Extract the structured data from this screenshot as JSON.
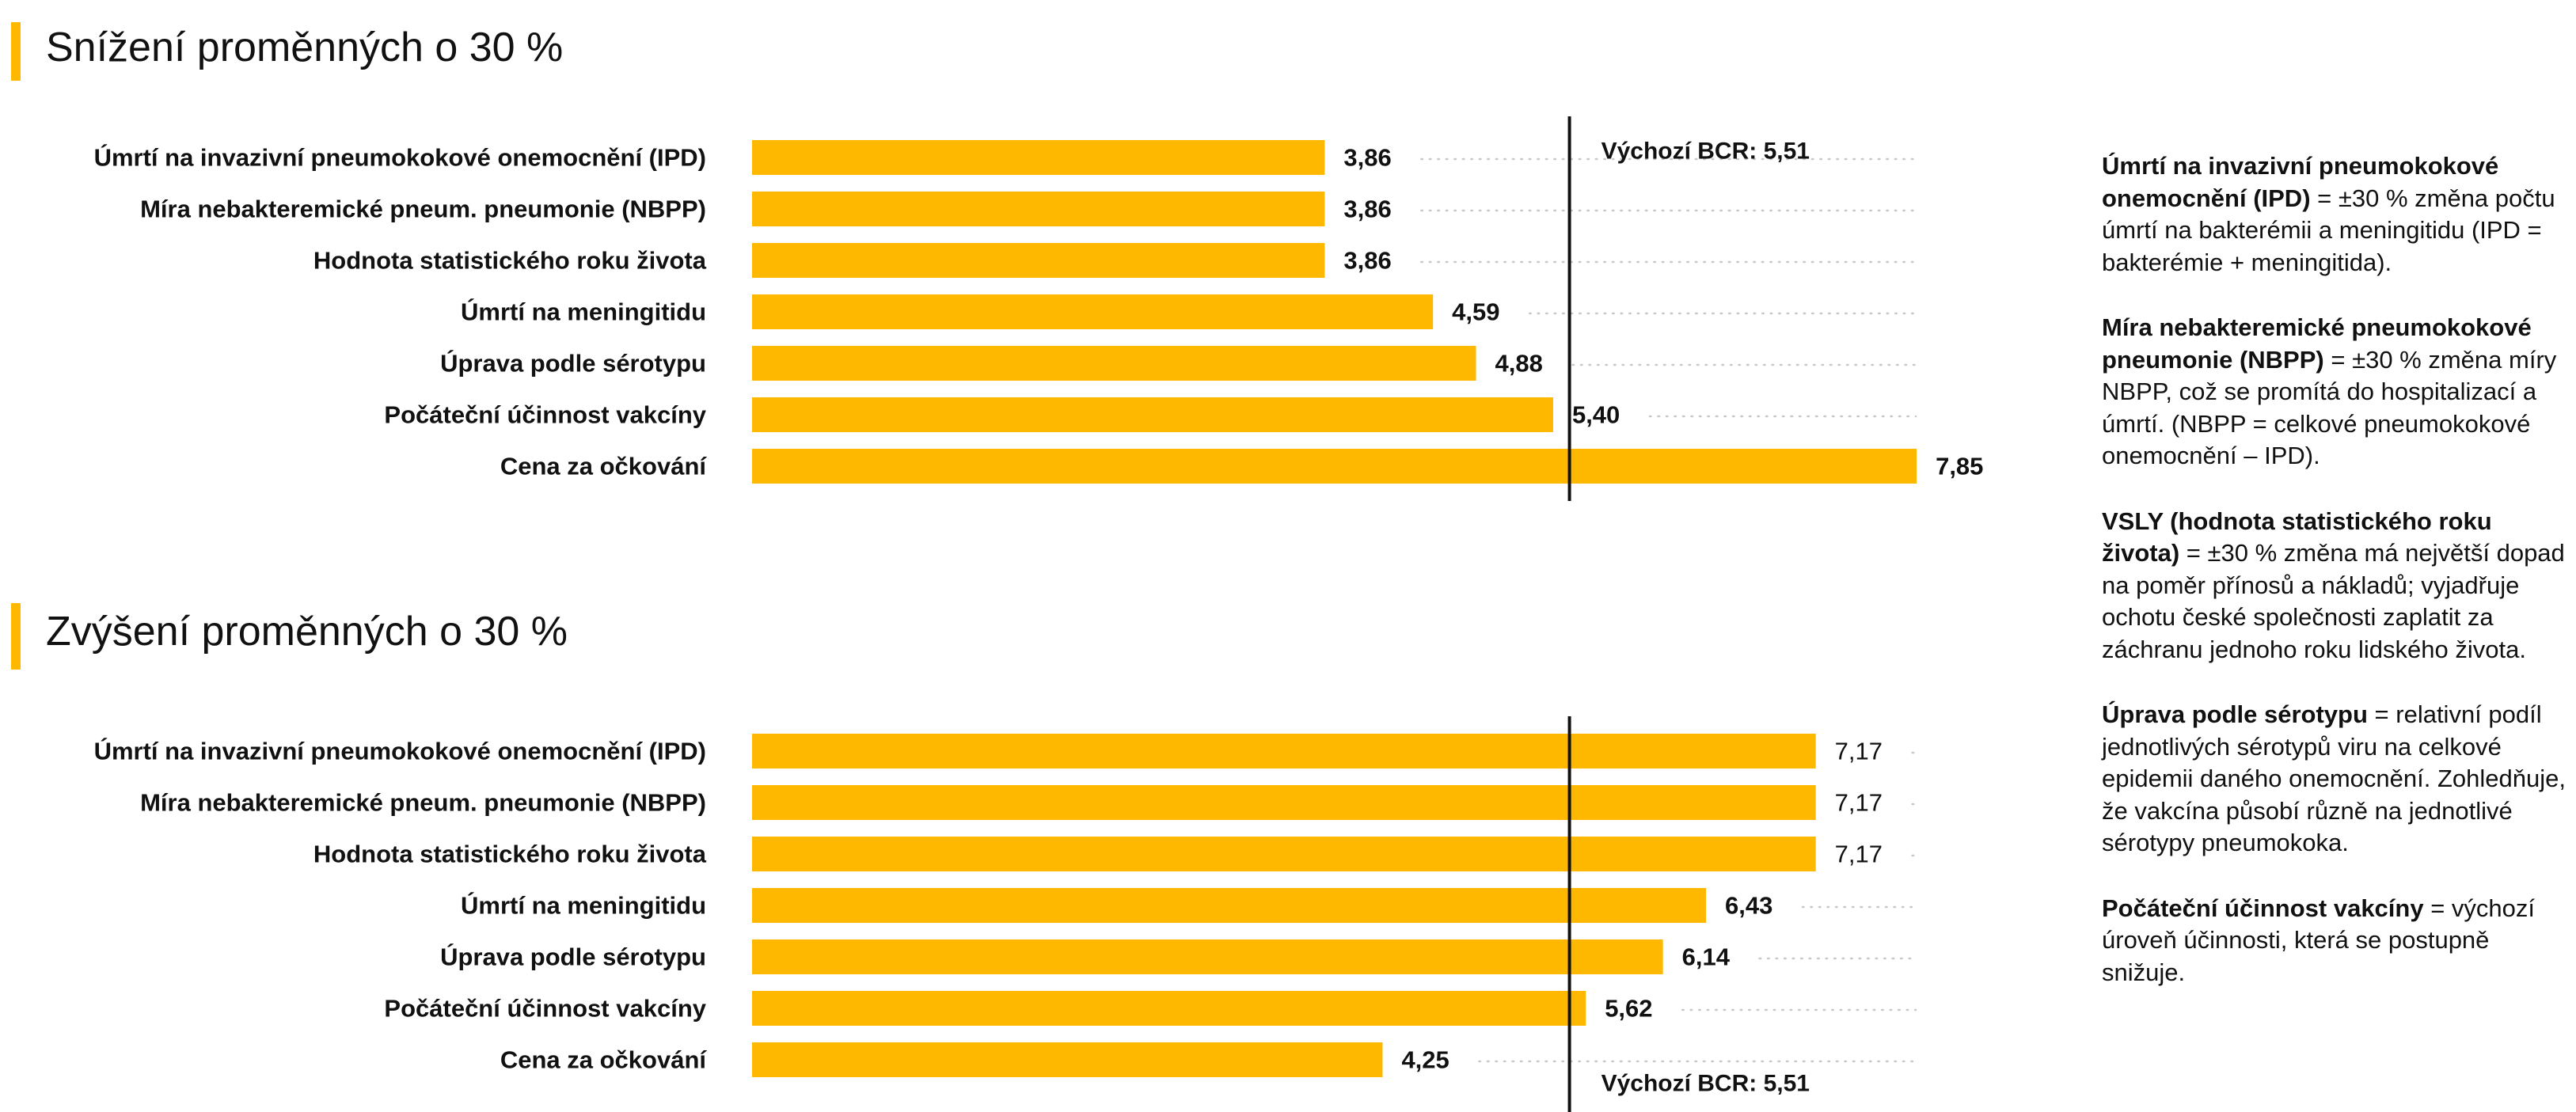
{
  "colors": {
    "accent": "#FFB800",
    "text": "#111111",
    "guide": "#c8c8c8"
  },
  "chart_data": [
    {
      "type": "bar",
      "orientation": "horizontal",
      "title": "Snížení proměnných o 30 %",
      "categories": [
        "Úmrtí na invazivní pneumokokové onemocnění (IPD)",
        "Míra nebakteremické pneum. pneumonie (NBPP)",
        "Hodnota statistického roku života",
        "Úmrtí na meningitidu",
        "Úprava podle sérotypu",
        "Počáteční účinnost vakcíny",
        "Cena za očkování"
      ],
      "values": [
        3.86,
        3.86,
        3.86,
        4.59,
        4.88,
        5.4,
        7.85
      ],
      "value_labels": [
        "3,86",
        "3,86",
        "3,86",
        "4,59",
        "4,88",
        "5,40",
        "7,85"
      ],
      "baseline": {
        "value": 5.51,
        "label": "Výchozí BCR: 5,51",
        "label_position": "top"
      },
      "xlim": [
        0,
        8.5
      ],
      "grid": false
    },
    {
      "type": "bar",
      "orientation": "horizontal",
      "title": "Zvýšení proměnných o 30 %",
      "categories": [
        "Úmrtí na invazivní pneumokokové onemocnění (IPD)",
        "Míra nebakteremické pneum. pneumonie (NBPP)",
        "Hodnota statistického roku života",
        "Úmrtí na meningitidu",
        "Úprava podle sérotypu",
        "Počáteční účinnost vakcíny",
        "Cena za očkování"
      ],
      "values": [
        7.17,
        7.17,
        7.17,
        6.43,
        6.14,
        5.62,
        4.25
      ],
      "value_labels": [
        "7,17",
        "7,17",
        "7,17",
        "6,43",
        "6,14",
        "5,62",
        "4,25"
      ],
      "baseline": {
        "value": 5.51,
        "label": "Výchozí BCR: 5,51",
        "label_position": "bottom"
      },
      "xlim": [
        0,
        8.5
      ],
      "grid": false
    }
  ],
  "legend": [
    {
      "term": "Úmrtí na invazivní pneumokokové onemocnění (IPD)",
      "desc": " = ±30 % změna počtu úmrtí na bakterémii a meningitidu (IPD = bakterémie + meningitida)."
    },
    {
      "term": "Míra nebakteremické pneumokokové pneumonie (NBPP)",
      "desc": " = ±30 % změna míry NBPP, což se promítá do hospitalizací a úmrtí. (NBPP = celkové pneumokokové onemocnění – IPD)."
    },
    {
      "term": "VSLY (hodnota statistického roku života)",
      "desc": " = ±30 % změna má největší dopad na poměr přínosů a nákladů; vyjadřuje ochotu české společnosti zaplatit za záchranu jednoho roku lidského života."
    },
    {
      "term": "Úprava podle sérotypu",
      "desc": " = relativní podíl jednotlivých sérotypů viru na celkové epidemii daného onemocnění. Zohledňuje, že vakcína působí různě na jednotlivé sérotypy pneumokoka."
    },
    {
      "term": "Počáteční účinnost vakcíny",
      "desc": " = výchozí úroveň účinnosti, která se postupně snižuje."
    }
  ]
}
